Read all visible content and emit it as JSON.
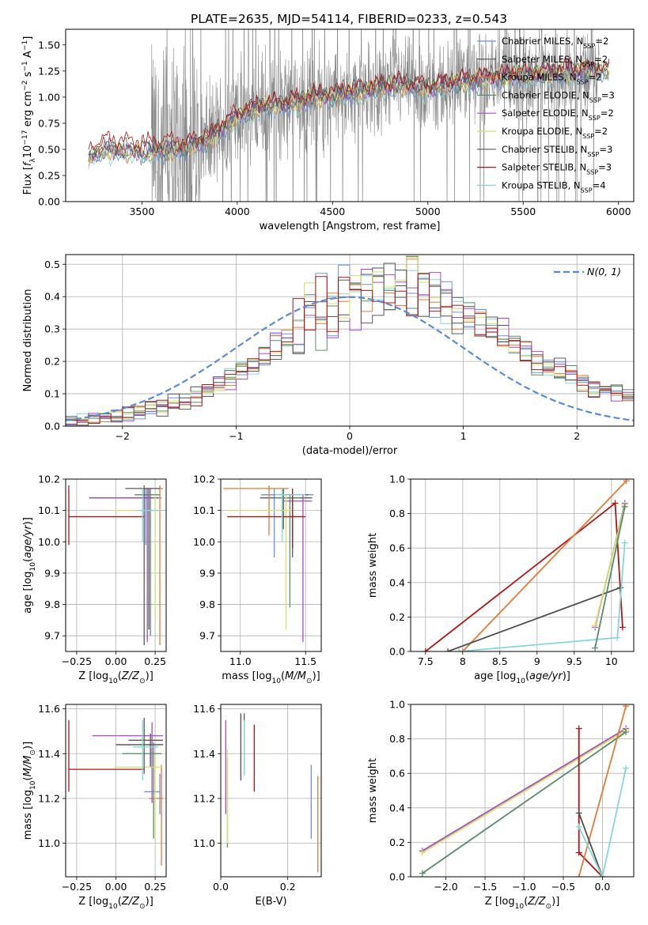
{
  "figure_title": "PLATE=2635, MJD=54114, FIBERID=0233, z=0.543",
  "series_colors": [
    "#6f8fd8",
    "#4d4d4d",
    "#e07b39",
    "#5a8a6a",
    "#a64dbf",
    "#d4e06a",
    "#5a5a5a",
    "#b01515",
    "#85d6d6"
  ],
  "chart_data": [
    {
      "id": "spectrum",
      "type": "line",
      "title": "PLATE=2635, MJD=54114, FIBERID=0233, z=0.543",
      "xlabel": "wavelength [Angstrom, rest frame]",
      "ylabel": "Flux [f_λ 10^-17 erg cm^-2 s^-1 A^-1]",
      "xlim": [
        3100,
        6080
      ],
      "ylim": [
        0,
        1.65
      ],
      "xticks": [
        3500,
        4000,
        4500,
        5000,
        5500,
        6000
      ],
      "yticks": [
        0.0,
        0.25,
        0.5,
        0.75,
        1.0,
        1.25,
        1.5
      ],
      "grid": false,
      "legend_position": "top-right",
      "legend": [
        {
          "label": "Chabrier MILES, N_SSP=2",
          "color": "#6f8fd8"
        },
        {
          "label": "Salpeter MILES, N_SSP=2",
          "color": "#4d4d4d"
        },
        {
          "label": "Kroupa MILES, N_SSP=2",
          "color": "#e07b39"
        },
        {
          "label": "Chabrier ELODIE, N_SSP=3",
          "color": "#5a8a6a"
        },
        {
          "label": "Salpeter ELODIE, N_SSP=2",
          "color": "#a64dbf"
        },
        {
          "label": "Kroupa ELODIE, N_SSP=2",
          "color": "#d4e06a"
        },
        {
          "label": "Chabrier STELIB, N_SSP=3",
          "color": "#5a5a5a"
        },
        {
          "label": "Salpeter STELIB, N_SSP=3",
          "color": "#b01515"
        },
        {
          "label": "Kroupa STELIB, N_SSP=4",
          "color": "#85d6d6"
        }
      ],
      "model_trend": [
        [
          3220,
          0.42
        ],
        [
          3300,
          0.5
        ],
        [
          3500,
          0.47
        ],
        [
          3700,
          0.5
        ],
        [
          3850,
          0.6
        ],
        [
          3950,
          0.75
        ],
        [
          4000,
          0.82
        ],
        [
          4100,
          0.9
        ],
        [
          4300,
          0.95
        ],
        [
          4500,
          1.02
        ],
        [
          4700,
          1.08
        ],
        [
          4850,
          1.12
        ],
        [
          5000,
          1.08
        ],
        [
          5200,
          1.15
        ],
        [
          5400,
          1.2
        ],
        [
          5600,
          1.22
        ],
        [
          5800,
          1.25
        ],
        [
          5900,
          1.25
        ]
      ],
      "data_range": [
        3550,
        5900
      ]
    },
    {
      "id": "residuals",
      "type": "line",
      "xlabel": "(data-model)/error",
      "ylabel": "Normed distribution",
      "xlim": [
        -2.5,
        2.5
      ],
      "ylim": [
        0,
        0.53
      ],
      "xticks": [
        -2,
        -1,
        0,
        1,
        2
      ],
      "yticks": [
        0.0,
        0.1,
        0.2,
        0.3,
        0.4,
        0.5
      ],
      "grid": true,
      "legend_position": "top-right",
      "gaussian_label": "N(0, 1)",
      "gaussian_color": "#5b8ad6",
      "bin_width": 0.1,
      "bin_start": -2.5,
      "base_hist": [
        0.012,
        0.018,
        0.022,
        0.027,
        0.033,
        0.04,
        0.045,
        0.05,
        0.058,
        0.07,
        0.08,
        0.09,
        0.11,
        0.13,
        0.15,
        0.18,
        0.2,
        0.22,
        0.25,
        0.28,
        0.3,
        0.33,
        0.35,
        0.38,
        0.4,
        0.42,
        0.43,
        0.42,
        0.41,
        0.42,
        0.43,
        0.42,
        0.41,
        0.38,
        0.36,
        0.34,
        0.32,
        0.3,
        0.28,
        0.26,
        0.23,
        0.21,
        0.19,
        0.17,
        0.15,
        0.13,
        0.12,
        0.11,
        0.1,
        0.09
      ]
    },
    {
      "id": "age-vs-Z",
      "type": "scatter",
      "xlabel": "Z [log10(Z/Z⊙)]",
      "ylabel": "age [log10(age/yr)]",
      "xlim": [
        -0.32,
        0.32
      ],
      "ylim": [
        9.65,
        10.2
      ],
      "xticks": [
        -0.25,
        0.0,
        0.25
      ],
      "xtick_labels": [
        "−0.25",
        "0.00",
        "0.25"
      ],
      "yticks": [
        9.7,
        9.8,
        9.9,
        10.0,
        10.1,
        10.2
      ],
      "grid": true,
      "points": [
        {
          "x": 0.19,
          "y": 10.14,
          "xerr": [
            0.08,
            0.1
          ],
          "yerr": [
            0.15,
            0.03
          ],
          "series": 0
        },
        {
          "x": 0.21,
          "y": 10.14,
          "xerr": [
            0.38,
            0.06
          ],
          "yerr": [
            0.42,
            0.03
          ],
          "series": 1
        },
        {
          "x": 0.28,
          "y": 10.17,
          "xerr": [
            0.1,
            0.02
          ],
          "yerr": [
            0.5,
            0.01
          ],
          "series": 2
        },
        {
          "x": 0.22,
          "y": 10.15,
          "xerr": [
            0.1,
            0.06
          ],
          "yerr": [
            0.45,
            0.02
          ],
          "series": 3
        },
        {
          "x": 0.2,
          "y": 10.14,
          "xerr": [
            0.36,
            0.06
          ],
          "yerr": [
            0.46,
            0.03
          ],
          "series": 4
        },
        {
          "x": 0.25,
          "y": 10.1,
          "xerr": [
            0.27,
            0.05
          ],
          "yerr": [
            0.35,
            0.05
          ],
          "series": 5
        },
        {
          "x": 0.18,
          "y": 10.17,
          "xerr": [
            0.12,
            0.1
          ],
          "yerr": [
            0.5,
            0.01
          ],
          "series": 6
        },
        {
          "x": -0.3,
          "y": 10.08,
          "xerr": [
            0.0,
            0.48
          ],
          "yerr": [
            0.09,
            0.1
          ],
          "series": 7
        },
        {
          "x": 0.17,
          "y": 10.1,
          "xerr": [
            0.04,
            0.13
          ],
          "yerr": [
            0.1,
            0.07
          ],
          "series": 8
        }
      ]
    },
    {
      "id": "age-vs-mass",
      "type": "scatter",
      "xlabel": "mass [log10(M/M⊙)]",
      "xlim": [
        10.85,
        11.62
      ],
      "ylim": [
        9.65,
        10.2
      ],
      "xticks": [
        11.0,
        11.5
      ],
      "xtick_labels": [
        "11.0",
        "11.5"
      ],
      "yticks": [
        9.7,
        9.8,
        9.9,
        10.0,
        10.1,
        10.2
      ],
      "grid": true,
      "points": [
        {
          "x": 11.26,
          "y": 10.15,
          "xerr": [
            0.1,
            0.3
          ],
          "yerr": [
            0.2,
            0.02
          ],
          "series": 0
        },
        {
          "x": 11.33,
          "y": 10.14,
          "xerr": [
            0.18,
            0.22
          ],
          "yerr": [
            0.1,
            0.03
          ],
          "series": 1
        },
        {
          "x": 11.22,
          "y": 10.17,
          "xerr": [
            0.35,
            0.15
          ],
          "yerr": [
            0.15,
            0.01
          ],
          "series": 2
        },
        {
          "x": 11.38,
          "y": 10.14,
          "xerr": [
            0.12,
            0.08
          ],
          "yerr": [
            0.35,
            0.01
          ],
          "series": 3
        },
        {
          "x": 11.48,
          "y": 10.13,
          "xerr": [
            0.15,
            0.07
          ],
          "yerr": [
            0.45,
            0.02
          ],
          "series": 4
        },
        {
          "x": 11.35,
          "y": 10.1,
          "xerr": [
            0.45,
            0.05
          ],
          "yerr": [
            0.38,
            0.05
          ],
          "series": 5
        },
        {
          "x": 11.4,
          "y": 10.15,
          "xerr": [
            0.1,
            0.12
          ],
          "yerr": [
            0.2,
            0.01
          ],
          "series": 6
        },
        {
          "x": 11.4,
          "y": 10.08,
          "xerr": [
            0.5,
            0.1
          ],
          "yerr": [
            0.1,
            0.09
          ],
          "series": 7
        },
        {
          "x": 11.32,
          "y": 10.15,
          "xerr": [
            0.05,
            0.18
          ],
          "yerr": [
            0.15,
            0.02
          ],
          "series": 8
        }
      ]
    },
    {
      "id": "weight-vs-age",
      "type": "line",
      "xlabel": "age [log10(age/yr)]",
      "ylabel": "mass weight",
      "xlim": [
        7.3,
        10.3
      ],
      "ylim": [
        0,
        1.0
      ],
      "xticks": [
        7.5,
        8.0,
        8.5,
        9.0,
        9.5,
        10.0
      ],
      "yticks": [
        0.0,
        0.2,
        0.4,
        0.6,
        0.8,
        1.0
      ],
      "grid": true,
      "series": [
        {
          "series": 7,
          "points": [
            [
              7.5,
              0.0
            ],
            [
              10.05,
              0.86
            ],
            [
              10.15,
              0.14
            ]
          ]
        },
        {
          "series": 2,
          "points": [
            [
              8.0,
              0.0
            ],
            [
              10.2,
              0.99
            ]
          ]
        },
        {
          "series": 1,
          "points": [
            [
              7.8,
              0.0
            ],
            [
              10.12,
              0.37
            ]
          ]
        },
        {
          "series": 8,
          "points": [
            [
              7.95,
              0.0
            ],
            [
              10.08,
              0.08
            ],
            [
              10.18,
              0.63
            ]
          ]
        },
        {
          "series": 4,
          "points": [
            [
              9.78,
              0.14
            ],
            [
              10.18,
              0.86
            ]
          ]
        },
        {
          "series": 5,
          "points": [
            [
              9.78,
              0.15
            ],
            [
              10.18,
              0.85
            ]
          ]
        },
        {
          "series": 3,
          "points": [
            [
              9.78,
              0.02
            ],
            [
              10.18,
              0.84
            ]
          ]
        }
      ]
    },
    {
      "id": "mass-vs-Z",
      "type": "scatter",
      "xlabel": "Z [log10(Z/Z⊙)]",
      "ylabel": "mass [log10(M/M⊙)]",
      "xlim": [
        -0.32,
        0.32
      ],
      "ylim": [
        10.85,
        11.62
      ],
      "xticks": [
        -0.25,
        0.0,
        0.25
      ],
      "xtick_labels": [
        "−0.25",
        "0.00",
        "0.25"
      ],
      "yticks": [
        11.0,
        11.2,
        11.4,
        11.6
      ],
      "grid": true,
      "points": [
        {
          "x": 0.28,
          "y": 11.23,
          "xerr": [
            0.1,
            0.0
          ],
          "yerr": [
            0.1,
            0.08
          ],
          "series": 0
        },
        {
          "x": 0.22,
          "y": 11.44,
          "xerr": [
            0.22,
            0.08
          ],
          "yerr": [
            0.1,
            0.05
          ],
          "series": 1
        },
        {
          "x": 0.29,
          "y": 11.2,
          "xerr": [
            0.08,
            0.01
          ],
          "yerr": [
            0.3,
            0.15
          ],
          "series": 2
        },
        {
          "x": 0.24,
          "y": 11.4,
          "xerr": [
            0.2,
            0.05
          ],
          "yerr": [
            0.38,
            0.05
          ],
          "series": 3
        },
        {
          "x": 0.23,
          "y": 11.48,
          "xerr": [
            0.38,
            0.07
          ],
          "yerr": [
            0.3,
            0.06
          ],
          "series": 4
        },
        {
          "x": 0.25,
          "y": 11.34,
          "xerr": [
            0.26,
            0.04
          ],
          "yerr": [
            0.32,
            0.05
          ],
          "series": 5
        },
        {
          "x": 0.18,
          "y": 11.46,
          "xerr": [
            0.1,
            0.12
          ],
          "yerr": [
            0.15,
            0.1
          ],
          "series": 6
        },
        {
          "x": -0.3,
          "y": 11.33,
          "xerr": [
            0.0,
            0.48
          ],
          "yerr": [
            0.1,
            0.22
          ],
          "series": 7
        },
        {
          "x": 0.17,
          "y": 11.43,
          "xerr": [
            0.06,
            0.1
          ],
          "yerr": [
            0.15,
            0.12
          ],
          "series": 8
        }
      ]
    },
    {
      "id": "mass-vs-ebv",
      "type": "scatter",
      "xlabel": "E(B-V)",
      "xlim": [
        0.0,
        0.3
      ],
      "ylim": [
        10.85,
        11.62
      ],
      "xticks": [
        0.0,
        0.2
      ],
      "xtick_labels": [
        "0.0",
        "0.2"
      ],
      "yticks": [
        11.0,
        11.2,
        11.4,
        11.6
      ],
      "grid": true,
      "points": [
        {
          "x": 0.27,
          "y": 11.25,
          "yerr": [
            0.23,
            0.1
          ],
          "series": 0
        },
        {
          "x": 0.06,
          "y": 11.48,
          "yerr": [
            0.2,
            0.1
          ],
          "series": 1
        },
        {
          "x": 0.29,
          "y": 11.15,
          "yerr": [
            0.28,
            0.15
          ],
          "series": 2
        },
        {
          "x": 0.02,
          "y": 11.33,
          "yerr": [
            0.35,
            0.05
          ],
          "series": 3
        },
        {
          "x": 0.015,
          "y": 11.35,
          "yerr": [
            0.22,
            0.2
          ],
          "series": 4
        },
        {
          "x": 0.02,
          "y": 11.3,
          "yerr": [
            0.3,
            0.12
          ],
          "series": 5
        },
        {
          "x": 0.07,
          "y": 11.43,
          "yerr": [
            0.12,
            0.15
          ],
          "series": 6
        },
        {
          "x": 0.1,
          "y": 11.38,
          "yerr": [
            0.15,
            0.15
          ],
          "series": 7
        },
        {
          "x": 0.07,
          "y": 11.4,
          "yerr": [
            0.1,
            0.15
          ],
          "series": 8
        }
      ]
    },
    {
      "id": "weight-vs-Z",
      "type": "line",
      "xlabel": "Z [log10(Z/Z⊙)]",
      "ylabel": "mass weight",
      "xlim": [
        -2.45,
        0.4
      ],
      "ylim": [
        0,
        1.0
      ],
      "xticks": [
        -2.0,
        -1.5,
        -1.0,
        -0.5,
        0.0
      ],
      "xtick_labels": [
        "−2.0",
        "−1.5",
        "−1.0",
        "−0.5",
        "0.0"
      ],
      "yticks": [
        0.0,
        0.2,
        0.4,
        0.6,
        0.8,
        1.0
      ],
      "grid": true,
      "series": [
        {
          "series": 4,
          "points": [
            [
              -2.3,
              0.15
            ],
            [
              0.3,
              0.86
            ]
          ]
        },
        {
          "series": 5,
          "points": [
            [
              -2.3,
              0.14
            ],
            [
              0.3,
              0.85
            ]
          ]
        },
        {
          "series": 3,
          "points": [
            [
              -2.3,
              0.02
            ],
            [
              0.3,
              0.84
            ]
          ]
        },
        {
          "series": 7,
          "points": [
            [
              -0.3,
              0.86
            ],
            [
              -0.3,
              0.14
            ],
            [
              0.0,
              0.0
            ]
          ]
        },
        {
          "series": 2,
          "points": [
            [
              -0.3,
              0.0
            ],
            [
              0.3,
              0.99
            ]
          ]
        },
        {
          "series": 1,
          "points": [
            [
              -0.3,
              0.37
            ],
            [
              0.0,
              0.0
            ]
          ]
        },
        {
          "series": 8,
          "points": [
            [
              -0.3,
              0.29
            ],
            [
              0.0,
              0.0
            ],
            [
              0.3,
              0.63
            ]
          ]
        }
      ]
    }
  ]
}
